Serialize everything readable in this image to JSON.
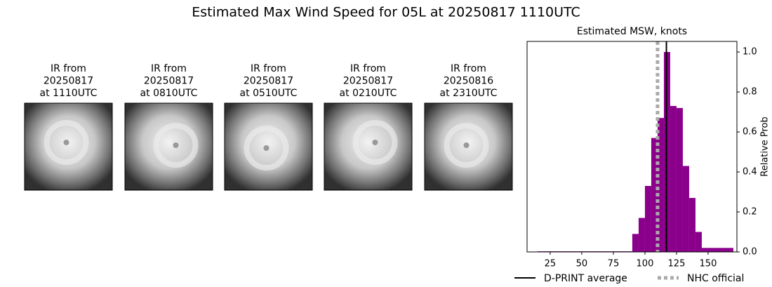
{
  "title": "Estimated Max Wind Speed for 05L at 20250817 1110UTC",
  "panels": [
    {
      "lines": [
        "IR from",
        "20250817",
        "at 1110UTC"
      ]
    },
    {
      "lines": [
        "IR from",
        "20250817",
        "at 0810UTC"
      ]
    },
    {
      "lines": [
        "IR from",
        "20250817",
        "at 0510UTC"
      ]
    },
    {
      "lines": [
        "IR from",
        "20250817",
        "at 0210UTC"
      ]
    },
    {
      "lines": [
        "IR from",
        "20250816",
        "at 2310UTC"
      ]
    }
  ],
  "chart_data": {
    "type": "histogram",
    "title": "Estimated MSW, knots",
    "y_label": "Relative Prob",
    "color": "#8b008b",
    "bins": [
      15,
      20,
      25,
      30,
      35,
      40,
      45,
      50,
      55,
      60,
      65,
      70,
      75,
      80,
      85,
      90,
      95,
      100,
      105,
      110,
      115,
      120,
      125,
      130,
      135,
      140,
      145,
      150,
      155,
      160,
      165,
      170
    ],
    "values": [
      0.003,
      0.003,
      0.003,
      0.003,
      0.003,
      0.003,
      0.003,
      0.003,
      0.003,
      0.003,
      0.003,
      0.003,
      0.003,
      0.003,
      0.003,
      0.09,
      0.17,
      0.33,
      0.57,
      0.67,
      1.0,
      0.73,
      0.72,
      0.43,
      0.27,
      0.1,
      0.02,
      0.02,
      0.02,
      0.02,
      0.02
    ],
    "xlim": [
      6.7,
      172.8
    ],
    "ylim": [
      0,
      1.053
    ],
    "xticks": [
      25,
      50,
      75,
      100,
      125,
      150
    ],
    "yticks": [
      {
        "value": 0,
        "label": "0.0"
      },
      {
        "value": 0.2,
        "label": "0.2"
      },
      {
        "value": 0.4,
        "label": "0.4"
      },
      {
        "value": 0.6,
        "label": "0.6"
      },
      {
        "value": 0.8,
        "label": "0.8"
      },
      {
        "value": 1,
        "label": "1.0"
      }
    ],
    "lines": [
      {
        "name": "D-PRINT average",
        "x": 117,
        "color": "#000000",
        "style": "solid"
      },
      {
        "name": "NHC official",
        "x": 110,
        "color": "#aaaaaa",
        "style": "dotted"
      }
    ]
  }
}
